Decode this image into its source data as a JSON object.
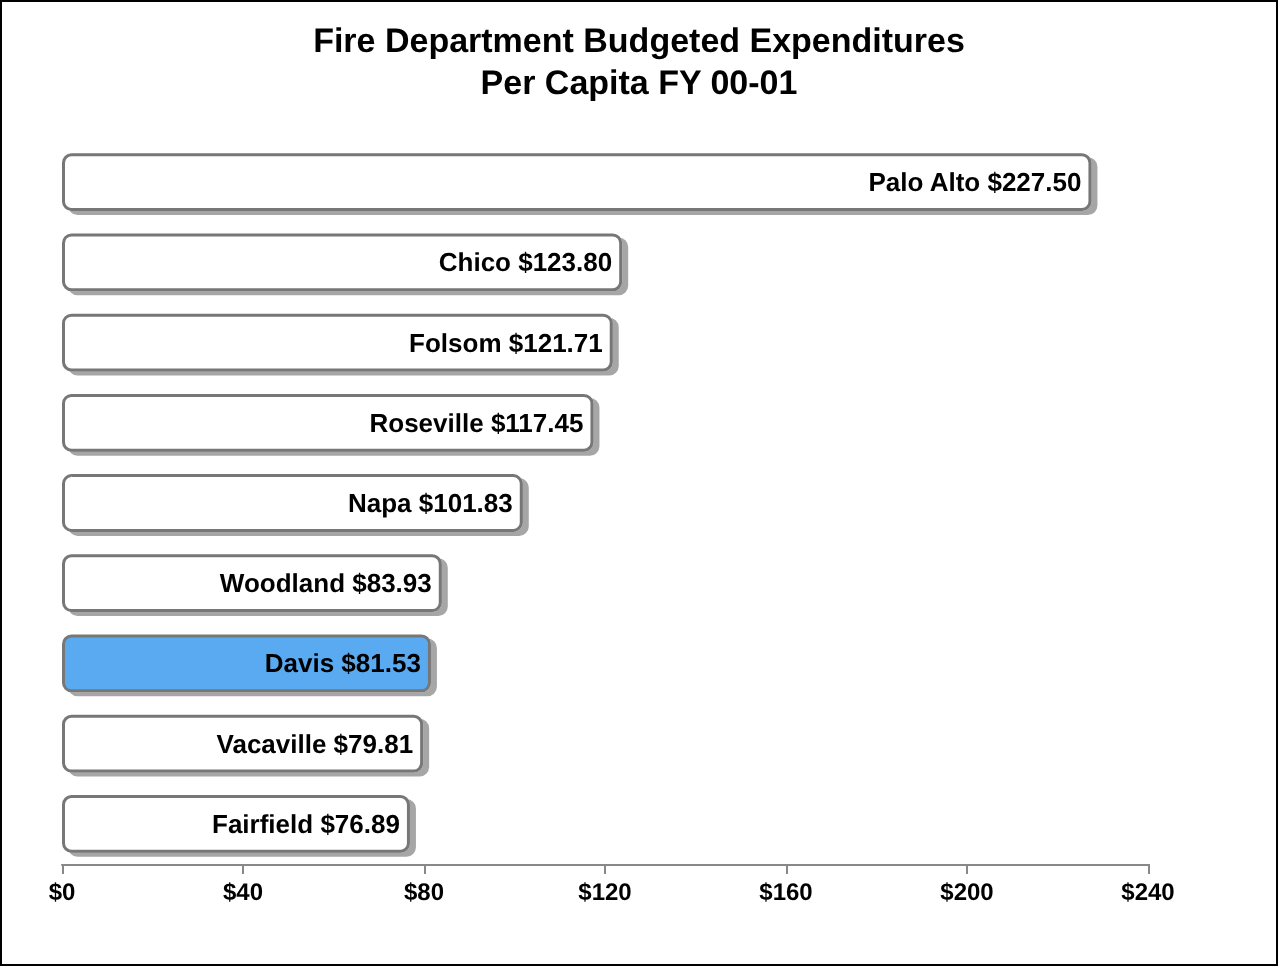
{
  "chart_data": {
    "type": "bar",
    "orientation": "horizontal",
    "title": "Fire Department Budgeted Expenditures\nPer Capita FY 00-01",
    "categories": [
      "Palo Alto",
      "Chico",
      "Folsom",
      "Roseville",
      "Napa",
      "Woodland",
      "Davis",
      "Vacaville",
      "Fairfield"
    ],
    "values": [
      227.5,
      123.8,
      121.71,
      117.45,
      101.83,
      83.93,
      81.53,
      79.81,
      76.89
    ],
    "value_labels": [
      "$227.50",
      "$123.80",
      "$121.71",
      "$117.45",
      "$101.83",
      "$83.93",
      "$81.53",
      "$79.81",
      "$76.89"
    ],
    "colors": [
      "#ffffff",
      "#ffffff",
      "#ffffff",
      "#ffffff",
      "#ffffff",
      "#ffffff",
      "#5aaaf2",
      "#ffffff",
      "#ffffff"
    ],
    "xlim": [
      0,
      240
    ],
    "xticks": [
      {
        "value": 0,
        "label": "$0"
      },
      {
        "value": 40,
        "label": "$40"
      },
      {
        "value": 80,
        "label": "$80"
      },
      {
        "value": 120,
        "label": "$120"
      },
      {
        "value": 160,
        "label": "$160"
      },
      {
        "value": 200,
        "label": "$200"
      },
      {
        "value": 240,
        "label": "$240"
      }
    ],
    "grid": false
  }
}
